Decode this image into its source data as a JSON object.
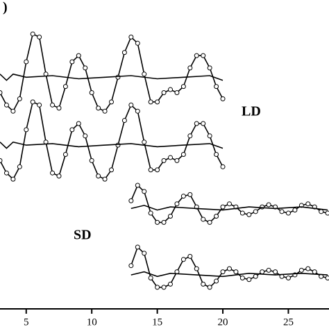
{
  "chart_data": {
    "type": "line",
    "xlim": [
      3,
      28.1
    ],
    "xticks": [
      5,
      10,
      15,
      20,
      25
    ],
    "ylim": [
      0,
      100
    ],
    "annotations": [
      ")",
      "LD",
      "SD"
    ],
    "series": [
      {
        "style": "circles",
        "color": "#000000",
        "x": [
          3,
          3.5,
          4,
          4.5,
          5,
          5.5,
          6,
          6.5,
          7,
          7.5,
          8,
          8.5,
          9,
          9.5,
          10,
          10.5,
          11,
          11.5,
          12,
          12.5,
          13,
          13.5,
          14,
          14.5,
          15,
          15.5,
          16,
          16.5,
          17,
          17.5,
          18,
          18.5,
          19,
          19.5,
          20
        ],
        "values": [
          70,
          66,
          64,
          68,
          80,
          89,
          88,
          76,
          66,
          65,
          72,
          80,
          82,
          78,
          70,
          65,
          64,
          67,
          75,
          83,
          88,
          86,
          76,
          67,
          67,
          70,
          71,
          70,
          72,
          78,
          82,
          82,
          78,
          72,
          68
        ]
      },
      {
        "style": "line",
        "color": "#000000",
        "x": [
          3,
          3.5,
          4,
          5,
          7,
          9,
          11,
          13,
          15,
          17,
          19,
          20
        ],
        "values": [
          76,
          74,
          76,
          75,
          75.5,
          74.5,
          75,
          75.5,
          74.5,
          75,
          75.5,
          74
        ]
      },
      {
        "style": "circles",
        "color": "#000000",
        "x": [
          3,
          3.5,
          4,
          4.5,
          5,
          5.5,
          6,
          6.5,
          7,
          7.5,
          8,
          8.5,
          9,
          9.5,
          10,
          10.5,
          11,
          11.5,
          12,
          12.5,
          13,
          13.5,
          14,
          14.5,
          15,
          15.5,
          16,
          16.5,
          17,
          17.5,
          18,
          18.5,
          19,
          19.5,
          20
        ],
        "values": [
          48,
          44,
          42,
          46,
          58,
          67,
          66,
          54,
          44,
          43,
          50,
          58,
          60,
          56,
          48,
          43,
          42,
          45,
          53,
          61,
          66,
          64,
          54,
          45,
          45,
          48,
          49,
          48,
          50,
          56,
          60,
          60,
          56,
          50,
          46
        ]
      },
      {
        "style": "line",
        "color": "#000000",
        "x": [
          3,
          3.5,
          4,
          5,
          7,
          9,
          11,
          13,
          15,
          17,
          19,
          20
        ],
        "values": [
          54,
          52,
          54,
          53,
          53.5,
          52.5,
          53,
          53.5,
          52.5,
          53,
          53.5,
          52
        ]
      },
      {
        "style": "circles",
        "color": "#000000",
        "x": [
          13,
          13.5,
          14,
          14.5,
          15,
          15.5,
          16,
          16.5,
          17,
          17.5,
          18,
          18.5,
          19,
          19.5,
          20,
          20.5,
          21,
          21.5,
          22,
          22.5,
          23,
          23.5,
          24,
          24.5,
          25,
          25.5,
          26,
          26.5,
          27,
          27.5,
          28
        ],
        "values": [
          35,
          40,
          38,
          31,
          28,
          28,
          30,
          34,
          36.5,
          37,
          33,
          29,
          28,
          30,
          33,
          34,
          33,
          31,
          30.5,
          31.5,
          33,
          33.7,
          33,
          31.5,
          31,
          32,
          33.5,
          34,
          33,
          31.5,
          31
        ]
      },
      {
        "style": "line",
        "color": "#000000",
        "x": [
          13,
          14,
          15,
          16,
          18,
          20,
          22,
          24,
          26,
          28
        ],
        "values": [
          32.5,
          33.5,
          32,
          33,
          32.5,
          32,
          33,
          32.5,
          33,
          32
        ]
      },
      {
        "style": "circles",
        "color": "#000000",
        "x": [
          13,
          13.5,
          14,
          14.5,
          15,
          15.5,
          16,
          16.5,
          17,
          17.5,
          18,
          18.5,
          19,
          19.5,
          20,
          20.5,
          21,
          21.5,
          22,
          22.5,
          23,
          23.5,
          24,
          24.5,
          25,
          25.5,
          26,
          26.5,
          27,
          27.5,
          28
        ],
        "values": [
          14,
          20,
          18,
          10,
          7,
          7,
          8,
          12,
          16,
          17,
          13,
          8,
          7,
          9,
          12,
          13,
          12,
          10,
          9.5,
          10.5,
          12,
          12.5,
          12,
          10.5,
          10,
          11,
          12.5,
          13,
          12,
          10.5,
          10
        ]
      },
      {
        "style": "line",
        "color": "#000000",
        "x": [
          13,
          14,
          15,
          16,
          18,
          20,
          22,
          24,
          26,
          28
        ],
        "values": [
          11,
          12,
          10.5,
          11.5,
          11,
          10.5,
          11.5,
          11,
          11.5,
          11
        ]
      }
    ]
  }
}
